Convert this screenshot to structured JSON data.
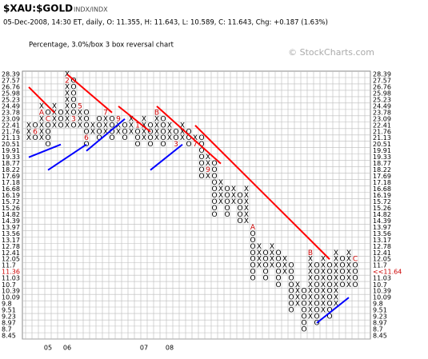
{
  "chart_data": {
    "type": "point-and-figure",
    "title": "$XAU:$GOLD",
    "exchange": "INDX/INDX",
    "subtitle": "05-Dec-2008, 14:30 ET, daily, O: 11.355, H: 11.643, L: 10.589, C: 11.643, Chg: +0.187 (1.63%)",
    "method": "Percentage, 3.0%/box 3 box reversal chart",
    "watermark": "© StockCharts.com",
    "log_scale": true,
    "grid": true,
    "ylim": [
      8.45,
      28.39
    ],
    "current_box": 11.36,
    "yticks": [
      28.39,
      27.57,
      26.76,
      25.98,
      25.23,
      24.49,
      23.78,
      23.09,
      22.41,
      21.76,
      21.13,
      20.51,
      19.91,
      19.33,
      18.77,
      18.22,
      17.69,
      17.18,
      16.68,
      16.19,
      15.72,
      15.26,
      14.82,
      14.39,
      13.97,
      13.56,
      13.17,
      12.78,
      12.41,
      12.05,
      11.7,
      11.36,
      11.03,
      10.7,
      10.39,
      10.09,
      9.8,
      9.51,
      9.23,
      8.97,
      8.7,
      8.45
    ],
    "y2ticks": [
      28.39,
      27.57,
      26.76,
      25.98,
      25.23,
      24.49,
      23.78,
      23.09,
      22.41,
      21.76,
      21.13,
      20.51,
      19.91,
      19.33,
      18.77,
      18.22,
      17.69,
      17.18,
      16.68,
      16.19,
      15.72,
      15.26,
      14.82,
      14.39,
      13.97,
      13.56,
      13.17,
      12.78,
      12.41,
      12.05,
      11.7,
      {
        "value": 11.36,
        "label": "<<11.64"
      },
      11.03,
      10.7,
      10.39,
      10.09,
      9.8,
      9.51,
      9.23,
      8.97,
      8.7,
      8.45
    ],
    "columns": [
      {
        "kind": "X",
        "top": 22.41,
        "bottom": 21.13
      },
      {
        "kind": "O",
        "top": 22.41,
        "bottom": 21.13,
        "month": {
          "value": 21.76,
          "label": "6"
        }
      },
      {
        "kind": "X",
        "top": 24.49,
        "bottom": 21.13,
        "month": {
          "value": 23.78,
          "label": "A"
        }
      },
      {
        "kind": "O",
        "top": 23.78,
        "bottom": 20.51,
        "year": "05",
        "month": {
          "value": 23.09,
          "label": "C"
        }
      },
      {
        "kind": "X",
        "top": 24.49,
        "bottom": 22.41
      },
      {
        "kind": "O",
        "top": 23.78,
        "bottom": 22.41
      },
      {
        "kind": "X",
        "top": 28.39,
        "bottom": 22.41,
        "year": "06",
        "month": {
          "value": 27.57,
          "label": "2"
        }
      },
      {
        "kind": "O",
        "top": 27.57,
        "bottom": 22.41,
        "month": {
          "value": 23.09,
          "label": "3"
        }
      },
      {
        "kind": "X",
        "top": 24.49,
        "bottom": 22.41,
        "month": {
          "value": 24.49,
          "label": "5"
        }
      },
      {
        "kind": "O",
        "top": 23.78,
        "bottom": 20.51,
        "month": {
          "value": 21.13,
          "label": "6"
        }
      },
      {
        "kind": "X",
        "top": 22.41,
        "bottom": 21.76
      },
      {
        "kind": "O",
        "top": 23.09,
        "bottom": 21.13
      },
      {
        "kind": "X",
        "top": 23.78,
        "bottom": 21.76,
        "month": {
          "value": 23.78,
          "label": "7"
        }
      },
      {
        "kind": "O",
        "top": 23.09,
        "bottom": 21.13
      },
      {
        "kind": "X",
        "top": 23.09,
        "bottom": 21.76,
        "month": {
          "value": 23.09,
          "label": "9"
        }
      },
      {
        "kind": "O",
        "top": 22.41,
        "bottom": 21.13
      },
      {
        "kind": "X",
        "top": 23.09,
        "bottom": 21.76
      },
      {
        "kind": "O",
        "top": 22.41,
        "bottom": 20.51,
        "month": {
          "value": 22.41,
          "label": "1"
        }
      },
      {
        "kind": "X",
        "top": 23.09,
        "bottom": 21.13,
        "year": "07"
      },
      {
        "kind": "O",
        "top": 22.41,
        "bottom": 20.51
      },
      {
        "kind": "X",
        "top": 23.78,
        "bottom": 21.13,
        "month": {
          "value": 23.78,
          "label": "B"
        }
      },
      {
        "kind": "O",
        "top": 23.09,
        "bottom": 20.51
      },
      {
        "kind": "X",
        "top": 22.41,
        "bottom": 21.13,
        "year": "08"
      },
      {
        "kind": "O",
        "top": 21.76,
        "bottom": 20.51,
        "month": {
          "value": 20.51,
          "label": "3"
        }
      },
      {
        "kind": "X",
        "top": 22.41,
        "bottom": 21.13
      },
      {
        "kind": "O",
        "top": 21.76,
        "bottom": 20.51
      },
      {
        "kind": "X",
        "top": 21.13,
        "bottom": 20.51,
        "month": {
          "value": 20.51,
          "label": "7"
        }
      },
      {
        "kind": "O",
        "top": 21.13,
        "bottom": 17.69
      },
      {
        "kind": "X",
        "top": 19.33,
        "bottom": 17.69,
        "month": {
          "value": 18.22,
          "label": "9"
        }
      },
      {
        "kind": "O",
        "top": 18.77,
        "bottom": 14.82
      },
      {
        "kind": "X",
        "top": 17.18,
        "bottom": 15.72
      },
      {
        "kind": "O",
        "top": 16.68,
        "bottom": 14.82
      },
      {
        "kind": "X",
        "top": 16.68,
        "bottom": 15.72
      },
      {
        "kind": "O",
        "top": 16.19,
        "bottom": 14.39
      },
      {
        "kind": "X",
        "top": 16.68,
        "bottom": 14.39
      },
      {
        "kind": "O",
        "top": 13.97,
        "bottom": 11.03,
        "month": {
          "value": 13.97,
          "label": "A"
        }
      },
      {
        "kind": "X",
        "top": 12.78,
        "bottom": 11.7
      },
      {
        "kind": "O",
        "top": 12.41,
        "bottom": 11.03
      },
      {
        "kind": "X",
        "top": 12.78,
        "bottom": 11.7
      },
      {
        "kind": "O",
        "top": 12.41,
        "bottom": 10.7
      },
      {
        "kind": "X",
        "top": 12.05,
        "bottom": 11.36
      },
      {
        "kind": "O",
        "top": 11.7,
        "bottom": 9.51
      },
      {
        "kind": "X",
        "top": 10.7,
        "bottom": 9.8
      },
      {
        "kind": "O",
        "top": 10.39,
        "bottom": 8.7
      },
      {
        "kind": "X",
        "top": 12.41,
        "bottom": 9.23,
        "month": {
          "value": 12.41,
          "label": "B"
        }
      },
      {
        "kind": "O",
        "top": 11.7,
        "bottom": 8.97
      },
      {
        "kind": "X",
        "top": 12.05,
        "bottom": 9.51
      },
      {
        "kind": "O",
        "top": 11.7,
        "bottom": 9.23
      },
      {
        "kind": "X",
        "top": 12.41,
        "bottom": 9.8
      },
      {
        "kind": "O",
        "top": 12.05,
        "bottom": 10.7
      },
      {
        "kind": "X",
        "top": 12.41,
        "bottom": 10.7
      },
      {
        "kind": "O",
        "top": 12.05,
        "bottom": 10.7,
        "month": {
          "value": 12.05,
          "label": "C"
        }
      }
    ],
    "trendlines": [
      {
        "color": "#ff0000",
        "from": [
          0,
          26.76
        ],
        "to": [
          4,
          23.78
        ]
      },
      {
        "color": "#0000ff",
        "from": [
          0,
          19.33
        ],
        "to": [
          5,
          20.51
        ]
      },
      {
        "color": "#0000ff",
        "from": [
          3,
          18.22
        ],
        "to": [
          9,
          20.51
        ]
      },
      {
        "color": "#ff0000",
        "from": [
          6,
          28.39
        ],
        "to": [
          13,
          23.78
        ]
      },
      {
        "color": "#0000ff",
        "from": [
          9,
          19.91
        ],
        "to": [
          15,
          23.09
        ]
      },
      {
        "color": "#ff0000",
        "from": [
          14,
          24.49
        ],
        "to": [
          19,
          21.76
        ]
      },
      {
        "color": "#ff0000",
        "from": [
          20,
          24.49
        ],
        "to": [
          30,
          18.77
        ]
      },
      {
        "color": "#0000ff",
        "from": [
          19,
          18.22
        ],
        "to": [
          24,
          20.51
        ]
      },
      {
        "color": "#ff0000",
        "from": [
          26,
          22.41
        ],
        "to": [
          47,
          12.05
        ]
      },
      {
        "color": "#0000ff",
        "from": [
          45,
          8.97
        ],
        "to": [
          50,
          10.09
        ]
      }
    ]
  }
}
